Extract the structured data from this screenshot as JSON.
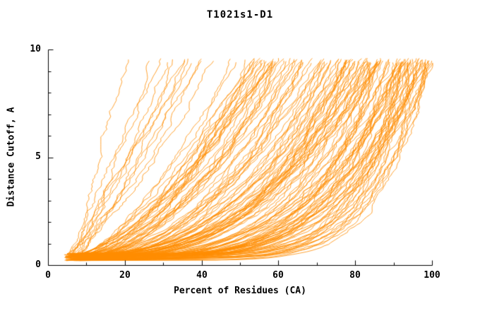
{
  "chart_data": {
    "type": "line",
    "title": "T1021s1-D1",
    "xlabel": "Percent of Residues (CA)",
    "ylabel": "Distance Cutoff, A",
    "xlim": [
      0,
      100
    ],
    "ylim": [
      0,
      10
    ],
    "x_ticks": [
      0,
      20,
      40,
      60,
      80,
      100
    ],
    "x_tick_labels": [
      "0",
      "20",
      "40",
      "60",
      "80",
      "100"
    ],
    "y_ticks": [
      0,
      5,
      10
    ],
    "y_tick_labels": [
      "0",
      "5",
      "10"
    ],
    "grid": false,
    "legend": "none",
    "line_color": "#ff8c00",
    "axis_color": "#000000",
    "background": "#ffffff",
    "description": "GDT-style plot: many overlapping orange curves, one per structure model, showing distance cutoff (A) versus percent of CA residues fitting under that cutoff. Curves start near (5, 0.3), rise monotonically and reach about 9.6 A at percentages ranging from roughly 17% (best models) to 100% (worst), with the densest bundle in the lower-right region.",
    "curve_family": {
      "n_curves": 150,
      "seed": 7,
      "x_start_range": [
        4.5,
        8.5
      ],
      "y_start_range": [
        0.2,
        0.55
      ],
      "x_top_range": [
        17,
        100
      ],
      "x_top_bias": 0.5,
      "y_max": 9.6,
      "shape_exponent_range": [
        0.16,
        1.05
      ],
      "jitter": 0.9
    }
  }
}
